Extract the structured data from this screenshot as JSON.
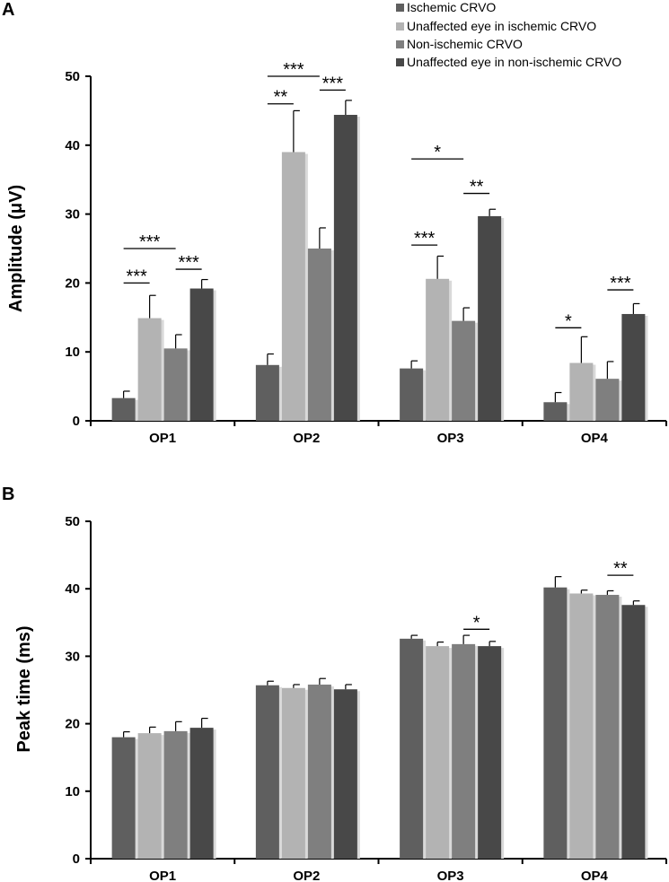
{
  "panels": [
    {
      "letter": "A",
      "legend": [
        {
          "label": "Ischemic CRVO",
          "color": "#5f5f5f"
        },
        {
          "label": "Unaffected eye in ischemic CRVO",
          "color": "#b3b3b3"
        },
        {
          "label": "Non-ischemic CRVO",
          "color": "#7f7f7f"
        },
        {
          "label": "Unaffected eye in non-ischemic CRVO",
          "color": "#484848"
        }
      ]
    },
    {
      "letter": "B",
      "legend": []
    }
  ],
  "chart_data": [
    {
      "type": "bar",
      "title": "",
      "xlabel": "",
      "ylabel": "Amplitude (μV)",
      "ylim": [
        0,
        50
      ],
      "yticks": [
        0,
        10,
        20,
        30,
        40,
        50
      ],
      "categories": [
        "OP1",
        "OP2",
        "OP3",
        "OP4"
      ],
      "series": [
        {
          "name": "Ischemic CRVO",
          "color": "#5f5f5f",
          "values": [
            3.3,
            8.1,
            7.6,
            2.7
          ],
          "errors": [
            1.0,
            1.6,
            1.1,
            1.4
          ]
        },
        {
          "name": "Unaffected eye in ischemic CRVO",
          "color": "#b3b3b3",
          "values": [
            14.9,
            39.0,
            20.6,
            8.4
          ],
          "errors": [
            3.3,
            6.0,
            3.3,
            3.8
          ]
        },
        {
          "name": "Non-ischemic CRVO",
          "color": "#7f7f7f",
          "values": [
            10.5,
            25.0,
            14.5,
            6.1
          ],
          "errors": [
            2.0,
            3.0,
            1.9,
            2.5
          ]
        },
        {
          "name": "Unaffected eye in non-ischemic CRVO",
          "color": "#484848",
          "values": [
            19.2,
            44.4,
            29.7,
            15.5
          ],
          "errors": [
            1.3,
            2.1,
            1.0,
            1.5
          ]
        }
      ],
      "significance": [
        {
          "category": "OP1",
          "from": 0,
          "to": 2,
          "label": "***",
          "y": 25.0
        },
        {
          "category": "OP1",
          "from": 0,
          "to": 1,
          "label": "***",
          "y": 20.0
        },
        {
          "category": "OP1",
          "from": 2,
          "to": 3,
          "label": "***",
          "y": 22.0
        },
        {
          "category": "OP2",
          "from": 0,
          "to": 2,
          "label": "***",
          "y": 50.0
        },
        {
          "category": "OP2",
          "from": 0,
          "to": 1,
          "label": "**",
          "y": 46.0
        },
        {
          "category": "OP2",
          "from": 2,
          "to": 3,
          "label": "***",
          "y": 48.0
        },
        {
          "category": "OP3",
          "from": 0,
          "to": 2,
          "label": "*",
          "y": 38.0
        },
        {
          "category": "OP3",
          "from": 0,
          "to": 1,
          "label": "***",
          "y": 25.5
        },
        {
          "category": "OP3",
          "from": 2,
          "to": 3,
          "label": "**",
          "y": 33.0
        },
        {
          "category": "OP4",
          "from": 0,
          "to": 1,
          "label": "*",
          "y": 13.5
        },
        {
          "category": "OP4",
          "from": 2,
          "to": 3,
          "label": "***",
          "y": 19.0
        }
      ]
    },
    {
      "type": "bar",
      "title": "",
      "xlabel": "",
      "ylabel": "Peak time (ms)",
      "ylim": [
        0,
        50
      ],
      "yticks": [
        0,
        10,
        20,
        30,
        40,
        50
      ],
      "categories": [
        "OP1",
        "OP2",
        "OP3",
        "OP4"
      ],
      "series": [
        {
          "name": "Ischemic CRVO",
          "color": "#5f5f5f",
          "values": [
            18.0,
            25.7,
            32.6,
            40.2
          ],
          "errors": [
            0.8,
            0.6,
            0.5,
            1.6
          ]
        },
        {
          "name": "Unaffected eye in ischemic CRVO",
          "color": "#b3b3b3",
          "values": [
            18.6,
            25.3,
            31.5,
            39.3
          ],
          "errors": [
            0.9,
            0.5,
            0.6,
            0.5
          ]
        },
        {
          "name": "Non-ischemic CRVO",
          "color": "#7f7f7f",
          "values": [
            18.9,
            25.8,
            31.8,
            39.1
          ],
          "errors": [
            1.4,
            0.9,
            1.3,
            0.6
          ]
        },
        {
          "name": "Unaffected eye in non-ischemic CRVO",
          "color": "#484848",
          "values": [
            19.4,
            25.1,
            31.5,
            37.6
          ],
          "errors": [
            1.4,
            0.7,
            0.7,
            0.6
          ]
        }
      ],
      "significance": [
        {
          "category": "OP3",
          "from": 2,
          "to": 3,
          "label": "*",
          "y": 34.0
        },
        {
          "category": "OP4",
          "from": 2,
          "to": 3,
          "label": "**",
          "y": 42.0
        }
      ]
    }
  ]
}
